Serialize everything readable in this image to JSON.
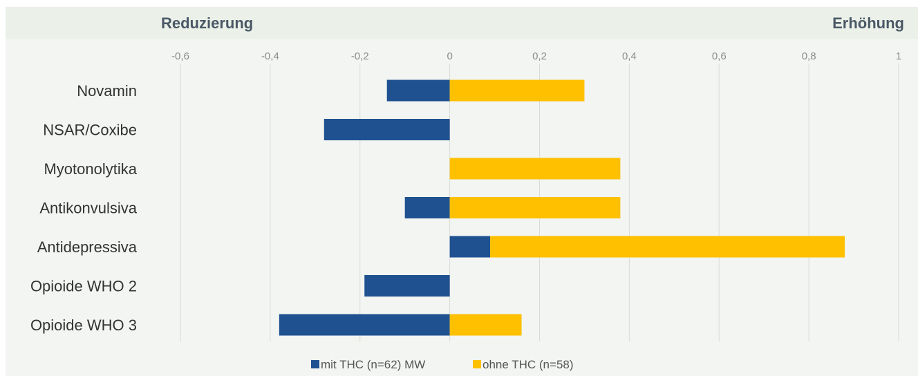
{
  "header": {
    "left_label": "Reduzierung",
    "right_label": "Erhöhung"
  },
  "colors": {
    "series_blue": "#1f5191",
    "series_yellow": "#ffc000",
    "background": "#f2f5f1",
    "header_band": "#ebf1e9",
    "gridline": "#d9dbd8"
  },
  "chart_data": {
    "type": "bar",
    "orientation": "horizontal",
    "stacked": true,
    "categories": [
      "Novamin",
      "NSAR/Coxibe",
      "Myotonolytika",
      "Antikonvulsiva",
      "Antidepressiva",
      "Opioide WHO 2",
      "Opioide WHO 3"
    ],
    "series": [
      {
        "name": "mit THC (n=62) MW",
        "color": "#1f5191",
        "values": [
          -0.14,
          -0.28,
          0.0,
          -0.1,
          0.09,
          -0.19,
          -0.38
        ]
      },
      {
        "name": "ohne THC (n=58)",
        "color": "#ffc000",
        "values": [
          0.3,
          0.0,
          0.38,
          0.38,
          0.79,
          0.0,
          0.16
        ]
      }
    ],
    "xlim": [
      -0.6,
      1.0
    ],
    "xticks": [
      -0.6,
      -0.4,
      -0.2,
      0,
      0.2,
      0.4,
      0.6,
      0.8,
      1.0
    ],
    "xtick_labels": [
      "-0,6",
      "-0,4",
      "-0,2",
      "0",
      "0,2",
      "0,4",
      "0,6",
      "0,8",
      "1"
    ],
    "xaxis_position": "top",
    "grid": true,
    "legend_position": "bottom"
  }
}
